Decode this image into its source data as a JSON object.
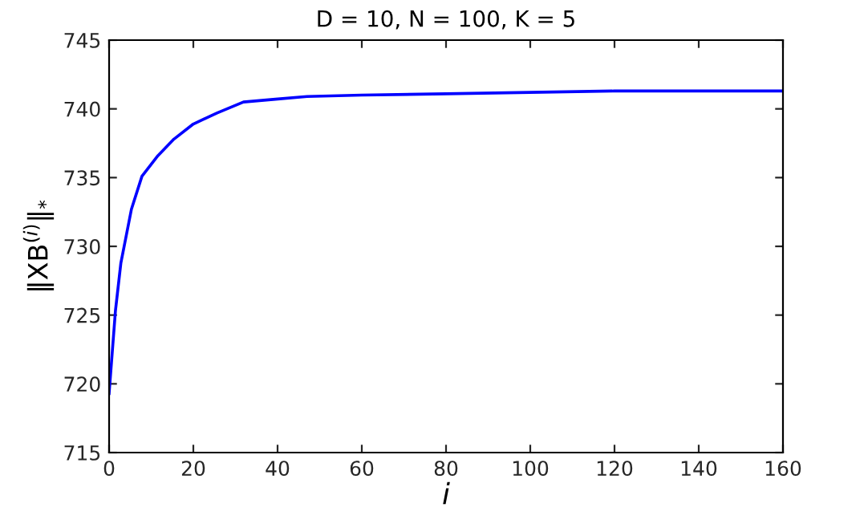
{
  "chart_data": {
    "type": "line",
    "title": "D = 10, N = 100, K = 5",
    "xlabel": "i",
    "ylabel": "‖XB$^{(i)}$‖$_{*}$",
    "series": [
      {
        "color": "#0000ff",
        "x": [
          0,
          1.5,
          2.8,
          5.3,
          7.8,
          11.6,
          15.4,
          20,
          25.6,
          31.9,
          39.5,
          47,
          60,
          80,
          100,
          120,
          140,
          160
        ],
        "values": [
          719.3,
          725.3,
          728.8,
          732.7,
          735.1,
          736.6,
          737.8,
          738.9,
          739.7,
          740.5,
          740.7,
          740.9,
          741.0,
          741.1,
          741.2,
          741.3,
          741.3,
          741.3
        ]
      }
    ],
    "xlim": [
      0,
      160
    ],
    "ylim": [
      715,
      745
    ],
    "xticks": [
      0,
      20,
      40,
      60,
      80,
      100,
      120,
      140,
      160
    ],
    "yticks": [
      715,
      720,
      725,
      730,
      735,
      740,
      745
    ],
    "grid": false,
    "legend": false,
    "marker": "none",
    "line_style": "solid"
  }
}
